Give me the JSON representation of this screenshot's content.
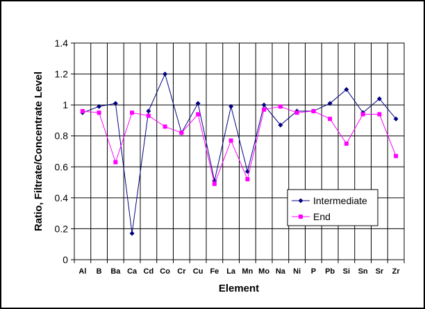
{
  "chart_data": {
    "type": "line",
    "xlabel": "Element",
    "ylabel": "Ratio, Filtrate/Concentrate Level",
    "ylim": [
      0,
      1.4
    ],
    "yticks": [
      "0",
      "0.2",
      "0.4",
      "0.6",
      "0.8",
      "1",
      "1.2",
      "1.4"
    ],
    "categories": [
      "Al",
      "B",
      "Ba",
      "Ca",
      "Cd",
      "Co",
      "Cr",
      "Cu",
      "Fe",
      "La",
      "Mn",
      "Mo",
      "Na",
      "Ni",
      "P",
      "Pb",
      "Si",
      "Sn",
      "Sr",
      "Zr"
    ],
    "grid": "vertical gridlines at category boundaries, horizontal gridlines at y ticks",
    "legend_position": "lower-right",
    "series": [
      {
        "name": "Intermediate",
        "color": "#000080",
        "marker": "diamond",
        "values": [
          0.95,
          0.99,
          1.01,
          0.17,
          0.96,
          1.2,
          0.82,
          1.01,
          0.51,
          0.99,
          0.57,
          1.0,
          0.87,
          0.96,
          0.96,
          1.01,
          1.1,
          0.95,
          1.04,
          0.91
        ]
      },
      {
        "name": "End",
        "color": "#ff00ff",
        "marker": "square",
        "values": [
          0.96,
          0.95,
          0.63,
          0.95,
          0.93,
          0.86,
          0.82,
          0.94,
          0.49,
          0.77,
          0.52,
          0.97,
          0.99,
          0.95,
          0.96,
          0.91,
          0.75,
          0.94,
          0.94,
          0.67
        ]
      }
    ]
  }
}
